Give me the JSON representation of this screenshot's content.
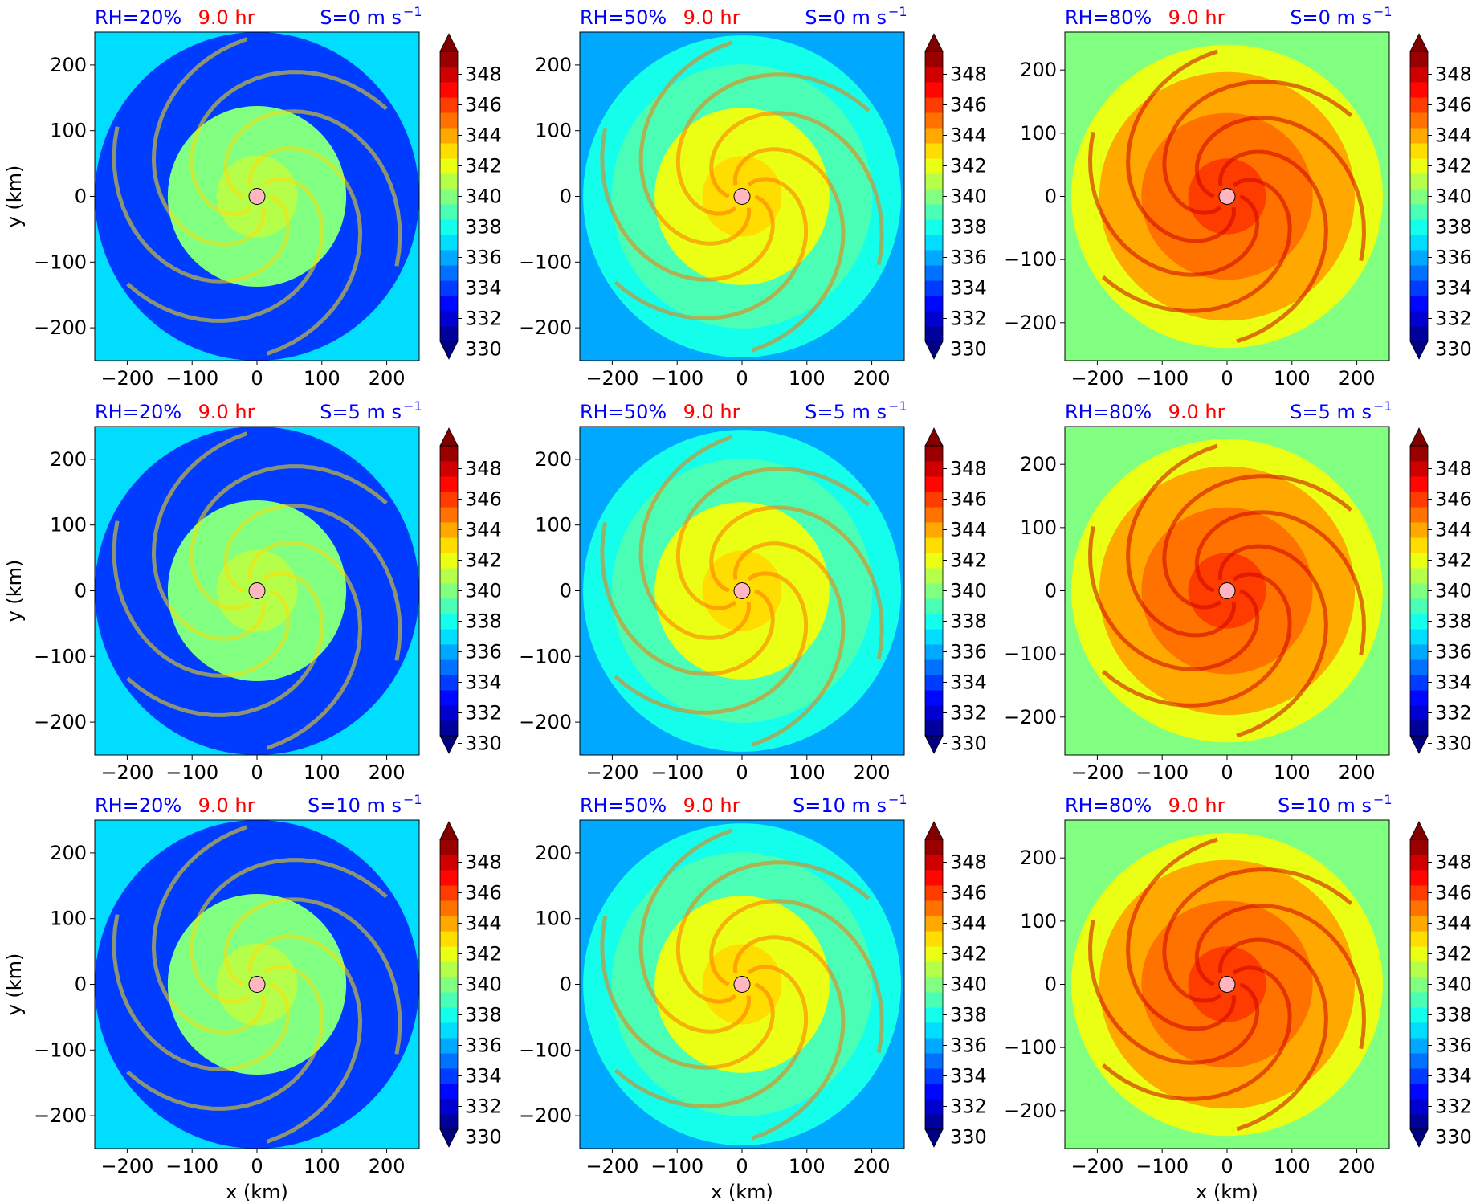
{
  "figure": {
    "time_label": "9.0 hr",
    "colors": {
      "header_blue": "#0000ff",
      "header_red": "#ff0000",
      "marker_fill": "#ffb6c1"
    }
  },
  "chart_data": {
    "type": "heatmap",
    "layout": "3x3 small multiples; rows = vertical shear S, columns = relative humidity RH",
    "xlabel": "x (km)",
    "ylabel": "y (km)",
    "xlim": [
      -250,
      250
    ],
    "ylim_by_column": [
      [
        -250,
        250
      ],
      [
        -250,
        250
      ],
      [
        -260,
        260
      ]
    ],
    "x_ticks": [
      -200,
      -100,
      0,
      100,
      200
    ],
    "y_ticks": [
      -200,
      -100,
      0,
      100,
      200
    ],
    "x_tick_labels": [
      "−200",
      "−100",
      "0",
      "100",
      "200"
    ],
    "y_tick_labels": [
      "−200",
      "−100",
      "0",
      "100",
      "200"
    ],
    "colorbar": {
      "range": [
        330,
        349
      ],
      "ticks": [
        330,
        332,
        334,
        336,
        338,
        340,
        342,
        344,
        346,
        348
      ],
      "levels": 19,
      "extend": "both",
      "colormap": "jet"
    },
    "center_marker": {
      "x": 0,
      "y": 0,
      "color": "#ffb6c1"
    },
    "columns": [
      {
        "rh_label": "RH=20%",
        "background_value": 336,
        "core_value": 339,
        "ring_value": 333,
        "edge_value": 333,
        "disk_radius": 250
      },
      {
        "rh_label": "RH=50%",
        "background_value": 335,
        "core_value": 341,
        "ring_value": 338,
        "edge_value": 337,
        "disk_radius": 245
      },
      {
        "rh_label": "RH=80%",
        "background_value": 339,
        "core_value": 344,
        "ring_value": 343,
        "edge_value": 341,
        "disk_radius": 240
      }
    ],
    "rows": [
      {
        "shear_label": "S=0 m s",
        "superscript": "−1"
      },
      {
        "shear_label": "S=5 m s",
        "superscript": "−1"
      },
      {
        "shear_label": "S=10 m s",
        "superscript": "−1"
      }
    ]
  }
}
